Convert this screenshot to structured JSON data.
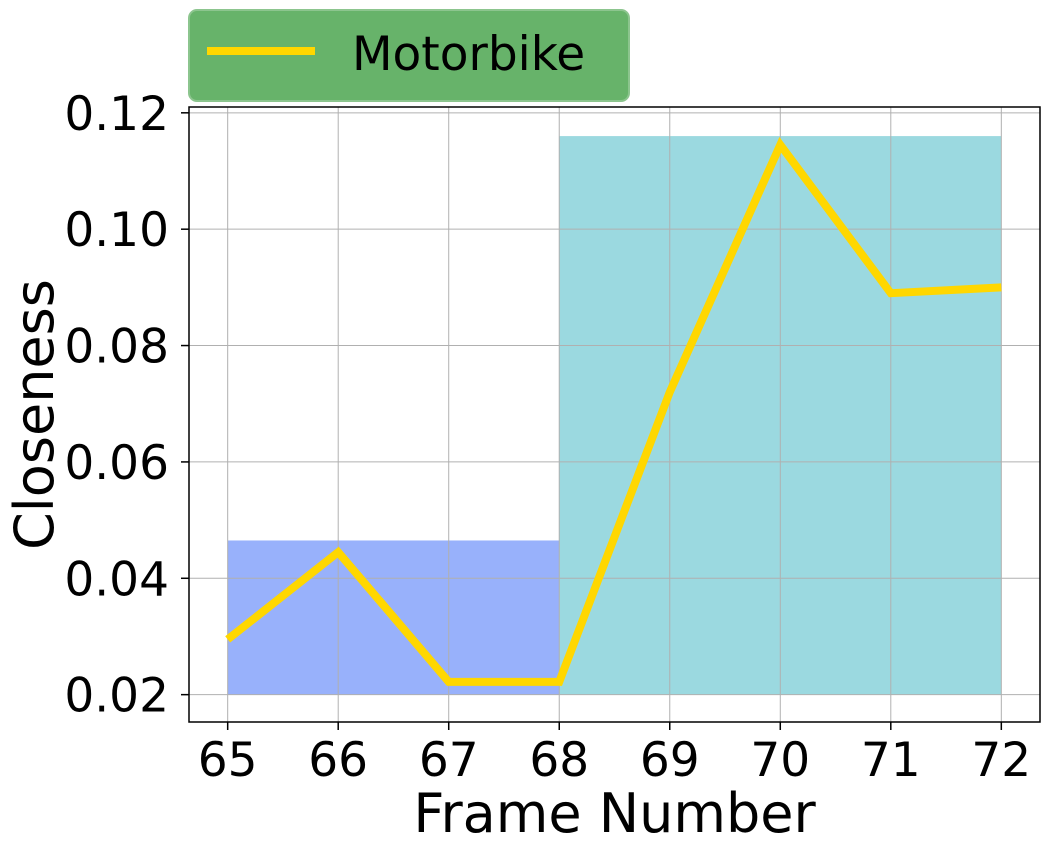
{
  "chart_data": {
    "type": "line",
    "xlabel": "Frame Number",
    "ylabel": "Closeness",
    "x": [
      65,
      66,
      67,
      68,
      69,
      70,
      71,
      72
    ],
    "xlim": [
      64.65,
      72.35
    ],
    "ylim": [
      0.0153,
      0.121
    ],
    "xticks": [
      65,
      66,
      67,
      68,
      69,
      70,
      71,
      72
    ],
    "xtick_labels": [
      "65",
      "66",
      "67",
      "68",
      "69",
      "70",
      "71",
      "72"
    ],
    "yticks": [
      0.02,
      0.04,
      0.06,
      0.08,
      0.1,
      0.12
    ],
    "ytick_labels": [
      "0.02",
      "0.04",
      "0.06",
      "0.08",
      "0.10",
      "0.12"
    ],
    "grid": true,
    "legend_position": "above-left",
    "series": [
      {
        "name": "Motorbike",
        "color": "#FFD700",
        "values": [
          0.0295,
          0.0445,
          0.0222,
          0.0222,
          0.072,
          0.1145,
          0.089,
          0.09
        ]
      }
    ],
    "shaded_regions": [
      {
        "x_start": 65,
        "x_end": 68,
        "y_start": 0.02,
        "y_end": 0.0465,
        "color": "#98B1FB"
      },
      {
        "x_start": 68,
        "x_end": 72,
        "y_start": 0.02,
        "y_end": 0.116,
        "color": "#9BD9E0"
      }
    ],
    "legend_background": "#67B36A"
  }
}
